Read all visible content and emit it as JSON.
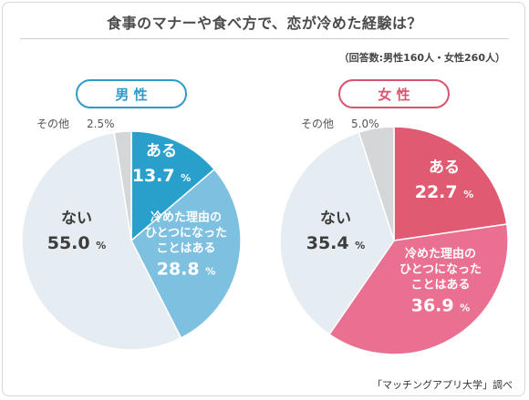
{
  "title": "食事のマナーや食べ方で、恋が冷めた経験は？",
  "sample_note": "（回答数:男性160人・女性260人）",
  "source": "「マッチングアプリ大学」調べ",
  "unit": "%",
  "colors": {
    "male_accent": "#2f9bc6",
    "female_accent": "#d9546e"
  },
  "chart_data": [
    {
      "type": "pie",
      "title": "男 性",
      "slices": [
        {
          "label": "ある",
          "value": 13.7,
          "color": "#29a0cc"
        },
        {
          "label": "冷めた理由の\nひとつになった\nことはある",
          "value": 28.8,
          "color": "#7ec0e0"
        },
        {
          "label": "ない",
          "value": 55.0,
          "color": "#e6edf2"
        },
        {
          "label": "その他",
          "value": 2.5,
          "color": "#d4d6d8"
        }
      ]
    },
    {
      "type": "pie",
      "title": "女 性",
      "slices": [
        {
          "label": "ある",
          "value": 22.7,
          "color": "#e05a71"
        },
        {
          "label": "冷めた理由の\nひとつになった\nことはある",
          "value": 36.9,
          "color": "#e97090"
        },
        {
          "label": "ない",
          "value": 35.4,
          "color": "#e6edf2"
        },
        {
          "label": "その他",
          "value": 5.0,
          "color": "#d4d6d8"
        }
      ]
    }
  ]
}
